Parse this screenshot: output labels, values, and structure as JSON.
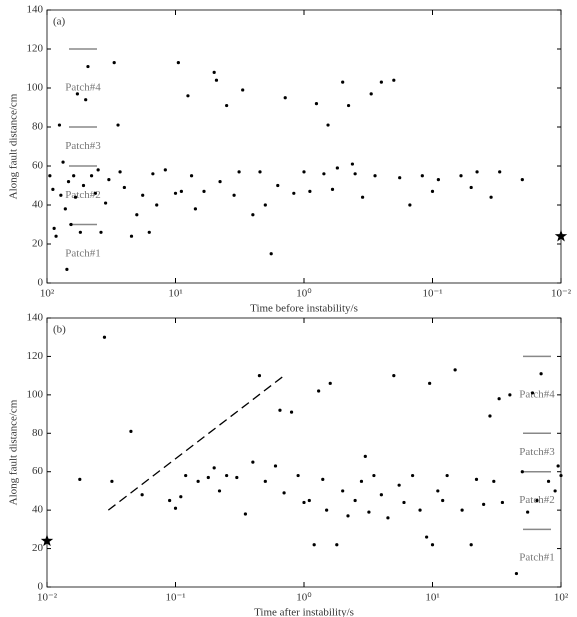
{
  "chart_data": [
    {
      "type": "scatter",
      "title": "(a)",
      "xlabel": "Time before instability/s",
      "ylabel": "Along fault distance/cm",
      "log_x": true,
      "color": "#000000",
      "xlim": [
        100,
        0.01
      ],
      "ylim": [
        0,
        140
      ],
      "xticks": [
        {
          "value": 100,
          "label": "10²"
        },
        {
          "value": 10,
          "label": "10¹"
        },
        {
          "value": 1,
          "label": "10⁰"
        },
        {
          "value": 0.1,
          "label": "10⁻¹"
        },
        {
          "value": 0.01,
          "label": "10⁻²"
        }
      ],
      "yticks": [
        0,
        20,
        40,
        60,
        80,
        100,
        120,
        140
      ],
      "x": [
        95,
        90,
        88,
        85,
        80,
        78,
        75,
        72,
        70,
        68,
        65,
        62,
        60,
        58,
        55,
        52,
        50,
        48,
        45,
        42,
        40,
        38,
        35,
        33,
        30,
        28,
        27,
        25,
        22,
        20,
        18,
        16,
        15,
        14,
        12,
        10,
        9.5,
        9,
        8,
        7.5,
        7,
        6,
        5,
        4.8,
        4.5,
        4,
        3.5,
        3.2,
        3,
        2.5,
        2.2,
        2,
        1.8,
        1.6,
        1.4,
        1.2,
        1,
        0.9,
        0.8,
        0.7,
        0.65,
        0.6,
        0.55,
        0.5,
        0.45,
        0.42,
        0.4,
        0.35,
        0.3,
        0.28,
        0.25,
        0.2,
        0.18,
        0.15,
        0.12,
        0.1,
        0.09,
        0.06,
        0.05,
        0.045,
        0.035,
        0.03,
        0.02
      ],
      "values": [
        55,
        48,
        28,
        24,
        81,
        45,
        62,
        38,
        7,
        52,
        30,
        55,
        44,
        97,
        26,
        50,
        94,
        111,
        55,
        46,
        58,
        26,
        41,
        53,
        113,
        81,
        57,
        49,
        24,
        35,
        45,
        26,
        56,
        40,
        58,
        46,
        113,
        47,
        96,
        55,
        38,
        47,
        108,
        104,
        52,
        91,
        45,
        57,
        99,
        35,
        57,
        40,
        15,
        50,
        95,
        46,
        57,
        47,
        92,
        56,
        81,
        48,
        59,
        103,
        91,
        61,
        56,
        44,
        97,
        55,
        103,
        104,
        54,
        40,
        55,
        47,
        53,
        55,
        49,
        57,
        44,
        57,
        53
      ],
      "patch_bounds": [
        120,
        80,
        60,
        30
      ],
      "patch_labels": [
        "Patch#4",
        "Patch#3",
        "Patch#2",
        "Patch#1"
      ],
      "star": {
        "x": 0.01,
        "y": 24
      }
    },
    {
      "type": "scatter",
      "title": "(b)",
      "xlabel": "Time after instability/s",
      "ylabel": "Along fault distance/cm",
      "log_x": true,
      "color": "#000000",
      "xlim": [
        0.01,
        100
      ],
      "ylim": [
        0,
        140
      ],
      "xticks": [
        {
          "value": 0.01,
          "label": "10⁻²"
        },
        {
          "value": 0.1,
          "label": "10⁻¹"
        },
        {
          "value": 1,
          "label": "10⁰"
        },
        {
          "value": 10,
          "label": "10¹"
        },
        {
          "value": 100,
          "label": "10²"
        }
      ],
      "yticks": [
        0,
        20,
        40,
        60,
        80,
        100,
        120,
        140
      ],
      "x": [
        0.018,
        0.028,
        0.032,
        0.045,
        0.055,
        0.09,
        0.1,
        0.11,
        0.12,
        0.15,
        0.18,
        0.2,
        0.22,
        0.25,
        0.3,
        0.35,
        0.4,
        0.45,
        0.5,
        0.6,
        0.65,
        0.7,
        0.8,
        0.9,
        1,
        1.1,
        1.2,
        1.3,
        1.4,
        1.5,
        1.6,
        1.8,
        2,
        2.2,
        2.5,
        2.8,
        3,
        3.2,
        3.5,
        4,
        4.5,
        5,
        5.5,
        6,
        7,
        8,
        9,
        9.5,
        10,
        11,
        12,
        13,
        15,
        17,
        20,
        22,
        25,
        28,
        30,
        33,
        35,
        40,
        45,
        50,
        55,
        60,
        65,
        70,
        80,
        90,
        95,
        100
      ],
      "values": [
        56,
        130,
        55,
        81,
        48,
        45,
        41,
        47,
        58,
        55,
        57,
        62,
        50,
        58,
        57,
        38,
        65,
        110,
        55,
        63,
        92,
        49,
        91,
        58,
        44,
        45,
        22,
        102,
        56,
        40,
        106,
        22,
        50,
        37,
        45,
        55,
        68,
        39,
        58,
        48,
        36,
        110,
        53,
        44,
        58,
        40,
        26,
        106,
        22,
        50,
        45,
        58,
        113,
        40,
        22,
        56,
        43,
        89,
        55,
        98,
        44,
        100,
        7,
        60,
        39,
        101,
        45,
        111,
        55,
        50,
        63,
        58
      ],
      "patch_bounds": [
        120,
        80,
        60,
        30
      ],
      "patch_labels": [
        "Patch#4",
        "Patch#3",
        "Patch#2",
        "Patch#1"
      ],
      "star": {
        "x": 0.01,
        "y": 24
      },
      "trend_line": {
        "x": [
          0.03,
          0.7
        ],
        "y": [
          40,
          110
        ]
      }
    }
  ]
}
